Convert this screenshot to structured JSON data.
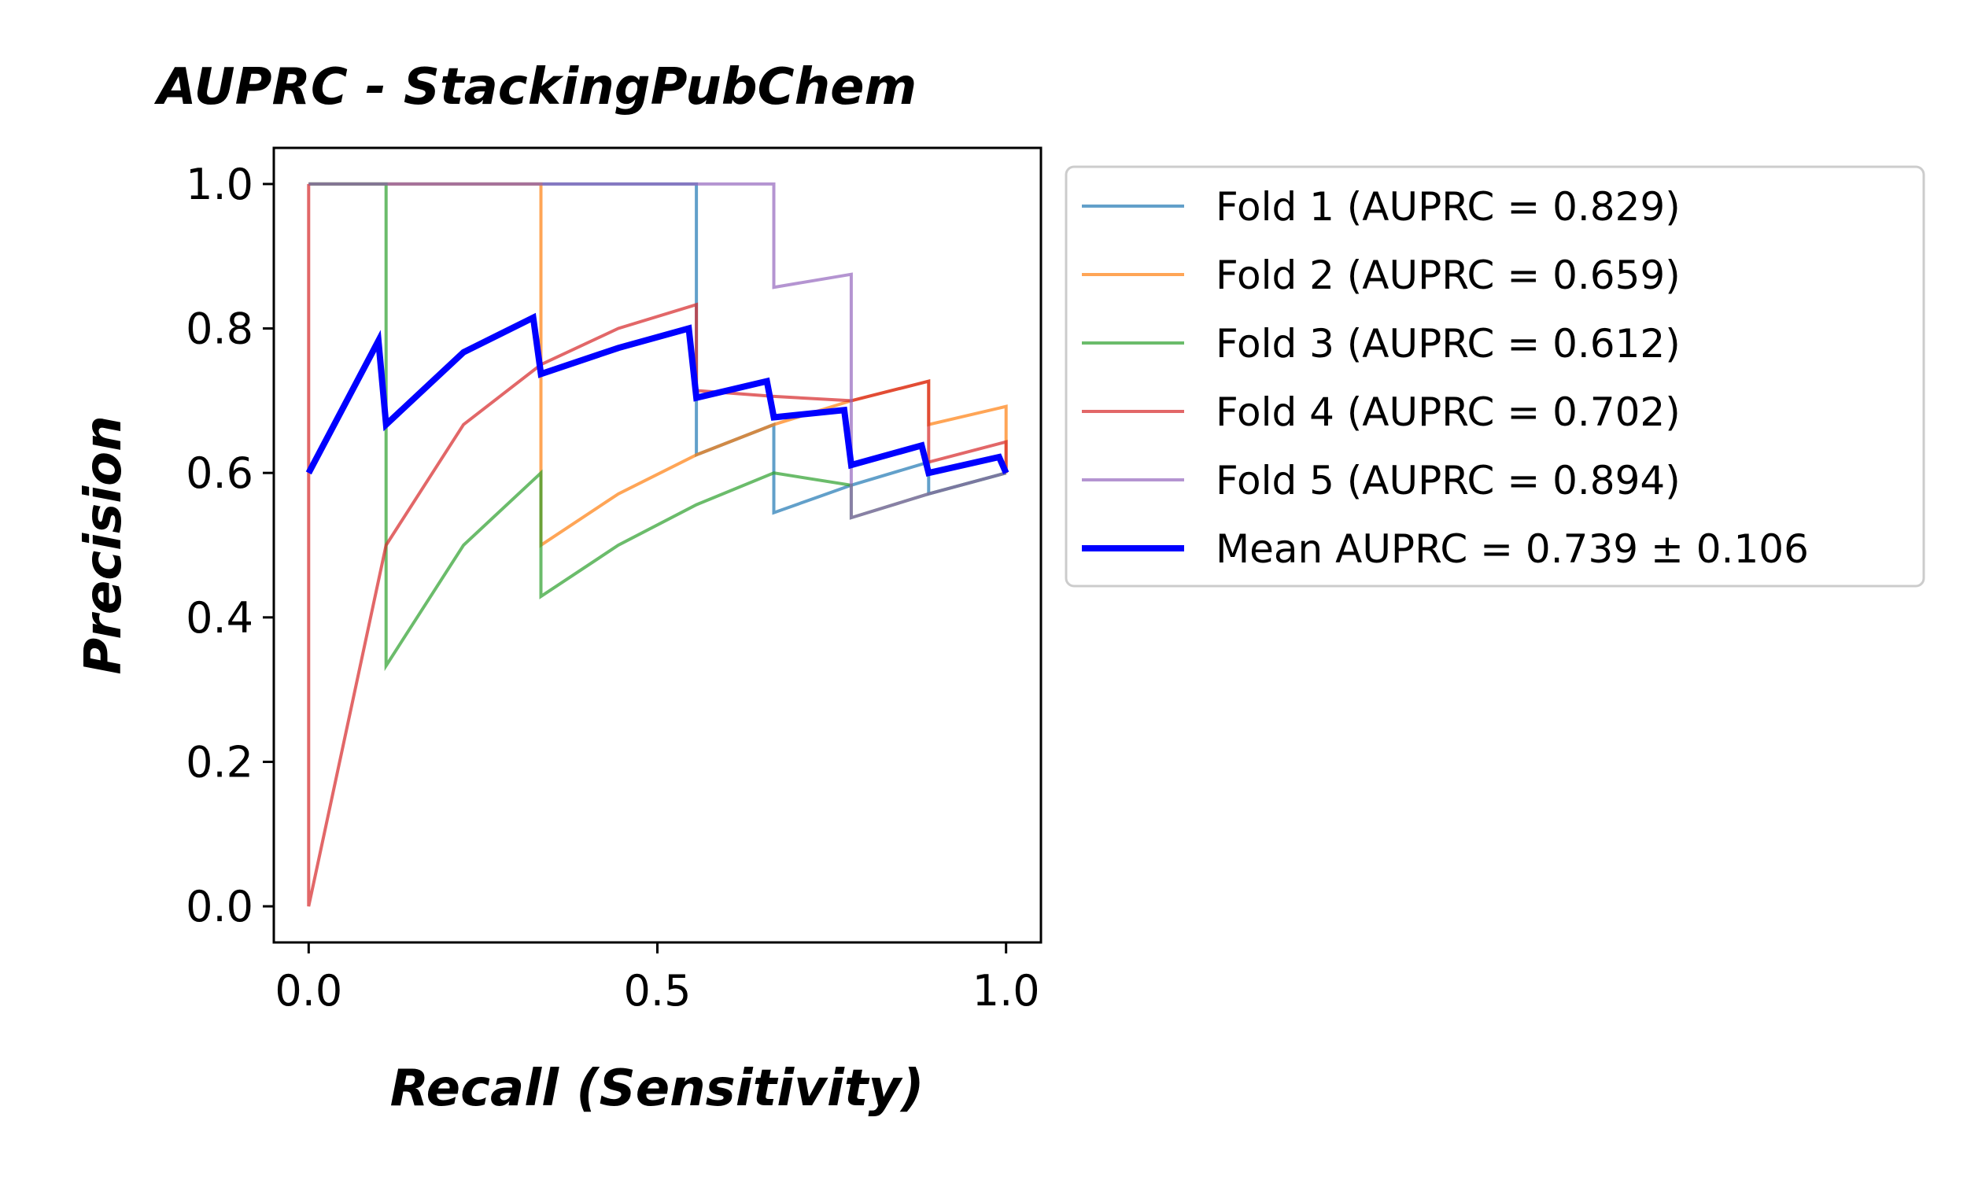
{
  "chart_data": {
    "type": "line",
    "title": "AUPRC - StackingPubChem",
    "xlabel": "Recall (Sensitivity)",
    "ylabel": "Precision",
    "xlim": [
      -0.05,
      1.05
    ],
    "ylim": [
      -0.05,
      1.05
    ],
    "xticks": [
      0.0,
      0.5,
      1.0
    ],
    "xtick_labels": [
      "0.0",
      "0.5",
      "1.0"
    ],
    "yticks": [
      0.0,
      0.2,
      0.4,
      0.6,
      0.8,
      1.0
    ],
    "ytick_labels": [
      "0.0",
      "0.2",
      "0.4",
      "0.6",
      "0.8",
      "1.0"
    ],
    "grid": false,
    "legend_position": "outside-right",
    "series": [
      {
        "name": "Fold 1 (AUPRC = 0.829)",
        "color": "#1f77b4",
        "points": [
          [
            0,
            1.0
          ],
          [
            0.111,
            1.0
          ],
          [
            0.222,
            1.0
          ],
          [
            0.333,
            1.0
          ],
          [
            0.444,
            1.0
          ],
          [
            0.556,
            1.0
          ],
          [
            0.556,
            0.625
          ],
          [
            0.667,
            0.667
          ],
          [
            0.667,
            0.545
          ],
          [
            0.778,
            0.583
          ],
          [
            0.889,
            0.615
          ],
          [
            0.889,
            0.571
          ],
          [
            1.0,
            0.6
          ]
        ]
      },
      {
        "name": "Fold 2 (AUPRC = 0.659)",
        "color": "#ff7f0e",
        "points": [
          [
            0,
            1.0
          ],
          [
            0.111,
            1.0
          ],
          [
            0.222,
            1.0
          ],
          [
            0.333,
            1.0
          ],
          [
            0.333,
            0.5
          ],
          [
            0.444,
            0.571
          ],
          [
            0.556,
            0.625
          ],
          [
            0.667,
            0.667
          ],
          [
            0.778,
            0.7
          ],
          [
            0.889,
            0.727
          ],
          [
            0.889,
            0.667
          ],
          [
            1.0,
            0.692
          ],
          [
            1.0,
            0.6
          ]
        ]
      },
      {
        "name": "Fold 3 (AUPRC = 0.612)",
        "color": "#2ca02c",
        "points": [
          [
            0,
            1.0
          ],
          [
            0.111,
            1.0
          ],
          [
            0.111,
            0.333
          ],
          [
            0.222,
            0.5
          ],
          [
            0.333,
            0.6
          ],
          [
            0.333,
            0.429
          ],
          [
            0.444,
            0.5
          ],
          [
            0.556,
            0.556
          ],
          [
            0.667,
            0.6
          ],
          [
            0.778,
            0.583
          ],
          [
            0.778,
            0.538
          ],
          [
            0.889,
            0.571
          ],
          [
            1.0,
            0.6
          ]
        ]
      },
      {
        "name": "Fold 4 (AUPRC = 0.702)",
        "color": "#d62728",
        "points": [
          [
            0,
            1.0
          ],
          [
            0,
            0.0
          ],
          [
            0.111,
            0.5
          ],
          [
            0.222,
            0.667
          ],
          [
            0.333,
            0.75
          ],
          [
            0.444,
            0.8
          ],
          [
            0.556,
            0.833
          ],
          [
            0.556,
            0.714
          ],
          [
            0.667,
            0.706
          ],
          [
            0.778,
            0.7
          ],
          [
            0.889,
            0.727
          ],
          [
            0.889,
            0.615
          ],
          [
            1.0,
            0.643
          ],
          [
            1.0,
            0.6
          ]
        ]
      },
      {
        "name": "Fold 5 (AUPRC = 0.894)",
        "color": "#9467bd",
        "points": [
          [
            0,
            1.0
          ],
          [
            0.111,
            1.0
          ],
          [
            0.222,
            1.0
          ],
          [
            0.333,
            1.0
          ],
          [
            0.444,
            1.0
          ],
          [
            0.556,
            1.0
          ],
          [
            0.667,
            1.0
          ],
          [
            0.667,
            0.857
          ],
          [
            0.778,
            0.875
          ],
          [
            0.778,
            0.538
          ],
          [
            0.889,
            0.571
          ],
          [
            1.0,
            0.6
          ]
        ]
      },
      {
        "name": "Mean AUPRC = 0.739 ± 0.106",
        "color": "#0000ff",
        "bold": true,
        "points": [
          [
            0,
            0.6
          ],
          [
            0.1,
            0.783
          ],
          [
            0.111,
            0.667
          ],
          [
            0.222,
            0.767
          ],
          [
            0.322,
            0.815
          ],
          [
            0.333,
            0.737
          ],
          [
            0.444,
            0.773
          ],
          [
            0.545,
            0.8
          ],
          [
            0.556,
            0.704
          ],
          [
            0.657,
            0.727
          ],
          [
            0.667,
            0.677
          ],
          [
            0.768,
            0.687
          ],
          [
            0.778,
            0.611
          ],
          [
            0.879,
            0.638
          ],
          [
            0.889,
            0.6
          ],
          [
            0.99,
            0.622
          ],
          [
            1.0,
            0.6
          ]
        ]
      }
    ]
  }
}
